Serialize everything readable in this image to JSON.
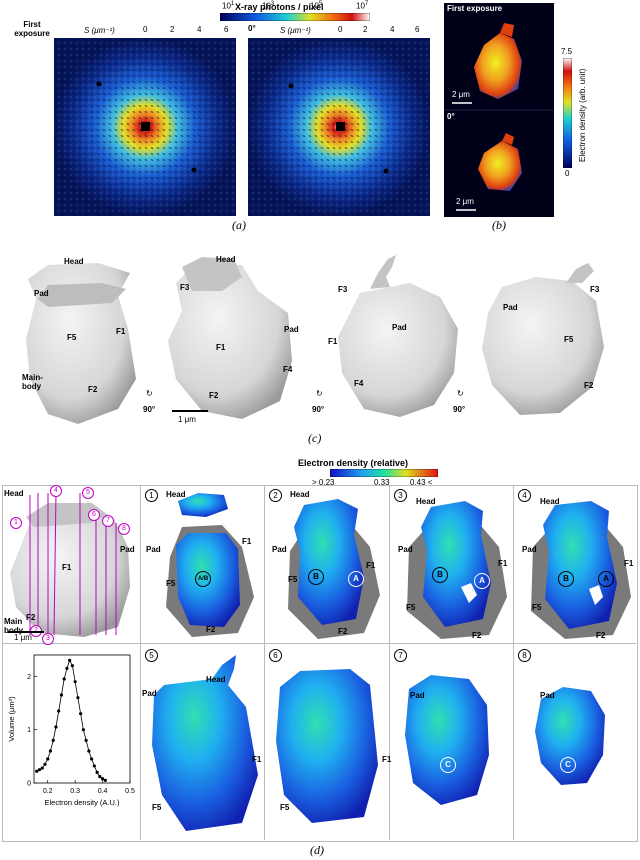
{
  "panel_a": {
    "colorbar_title": "X-ray photons / pixel",
    "colorbar_ticks": [
      "10",
      "10",
      "10",
      "10"
    ],
    "colorbar_exponents": [
      "1",
      "3",
      "5",
      "7"
    ],
    "left_title": "First exposure",
    "right_title": "0°",
    "axis_label": "S (μm⁻¹)",
    "axis_ticks": [
      "0",
      "2",
      "4",
      "6"
    ],
    "caption": "(a)"
  },
  "panel_b": {
    "top_title": "First exposure",
    "bottom_title": "0°",
    "scale_top": "2 μm",
    "scale_bottom": "2 μm",
    "colorbar_label": "Electron density (arb. unit)",
    "colorbar_max": "7.5",
    "colorbar_min": "0",
    "caption": "(b)"
  },
  "panel_c": {
    "views": [
      {
        "labels": [
          "Head",
          "Pad",
          "F5",
          "F1",
          "Main-body",
          "F2"
        ]
      },
      {
        "labels": [
          "Head",
          "F3",
          "Pad",
          "F1",
          "F4",
          "F2"
        ]
      },
      {
        "labels": [
          "F3",
          "Pad",
          "F1",
          "F4"
        ]
      },
      {
        "labels": [
          "F3",
          "Pad",
          "F5",
          "F2"
        ]
      }
    ],
    "rotation_label": "90°",
    "scale": "1 μm",
    "caption": "(c)"
  },
  "panel_d": {
    "colorbar_title": "Electron density (relative)",
    "colorbar_ticks": [
      "> 0.23",
      "0.33",
      "0.43 <"
    ],
    "overview_labels": [
      "Head",
      "F1",
      "F2",
      "Pad",
      "Main body"
    ],
    "overview_scale": "1 μm",
    "slice_numbers": [
      "1",
      "2",
      "3",
      "4",
      "5",
      "6",
      "7",
      "8"
    ],
    "slices": [
      {
        "labels": [
          "Head",
          "Pad",
          "F5",
          "F1",
          "F2"
        ],
        "markers": [
          "A/B"
        ]
      },
      {
        "labels": [
          "Head",
          "Pad",
          "F5",
          "F1",
          "F2"
        ],
        "markers": [
          "B",
          "A"
        ]
      },
      {
        "labels": [
          "Head",
          "Pad",
          "F5",
          "F1",
          "F2"
        ],
        "markers": [
          "B",
          "A"
        ]
      },
      {
        "labels": [
          "Head",
          "Pad",
          "F5",
          "F1",
          "F2"
        ],
        "markers": [
          "B",
          "A"
        ]
      },
      {
        "labels": [
          "Head",
          "Pad",
          "F1",
          "F5"
        ],
        "markers": []
      },
      {
        "labels": [
          "F1",
          "F5"
        ],
        "markers": []
      },
      {
        "labels": [
          "Pad"
        ],
        "markers": [
          "C"
        ]
      },
      {
        "labels": [
          "Pad"
        ],
        "markers": [
          "C"
        ]
      }
    ],
    "caption": "(d)"
  },
  "chart_data": {
    "type": "line",
    "xlabel": "Electron density (A.U.)",
    "ylabel": "Volume (μm³)",
    "xlim": [
      0.15,
      0.5
    ],
    "ylim": [
      0,
      2.4
    ],
    "x_ticks": [
      "0.2",
      "0.3",
      "0.4",
      "0.5"
    ],
    "y_ticks": [
      "0",
      "1",
      "2"
    ],
    "x": [
      0.16,
      0.17,
      0.18,
      0.19,
      0.2,
      0.21,
      0.22,
      0.23,
      0.24,
      0.25,
      0.26,
      0.27,
      0.28,
      0.29,
      0.3,
      0.31,
      0.32,
      0.33,
      0.34,
      0.35,
      0.36,
      0.37,
      0.38,
      0.39,
      0.4,
      0.41
    ],
    "values": [
      0.22,
      0.25,
      0.28,
      0.35,
      0.45,
      0.6,
      0.8,
      1.05,
      1.35,
      1.65,
      1.95,
      2.15,
      2.3,
      2.2,
      1.9,
      1.6,
      1.3,
      1.0,
      0.8,
      0.6,
      0.45,
      0.32,
      0.2,
      0.12,
      0.08,
      0.05
    ]
  },
  "colors": {
    "pattern_bg": "#0a2a80",
    "pattern_mid": "#2a6fd8",
    "magenta": "#c000c0"
  }
}
